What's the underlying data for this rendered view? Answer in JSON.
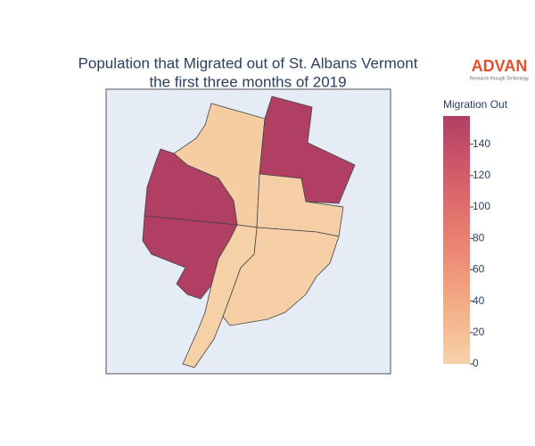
{
  "chart_data": {
    "type": "choropleth",
    "title": [
      "Population that Migrated out of St. Albans Vermont",
      "the first three months of 2019"
    ],
    "colorbar_title": "Migration Out",
    "values": [
      6,
      158,
      158,
      158,
      4,
      3,
      2
    ],
    "zlim": [
      0,
      158
    ],
    "zticks": [
      0,
      20,
      40,
      60,
      80,
      100,
      120,
      140
    ],
    "colorscale": [
      "#f6d2a9",
      "#f3aa84",
      "#ea8171",
      "#d55d6a",
      "#b13f64"
    ]
  },
  "logo": {
    "name": "ADVAN",
    "tagline": "Research through Technology"
  }
}
